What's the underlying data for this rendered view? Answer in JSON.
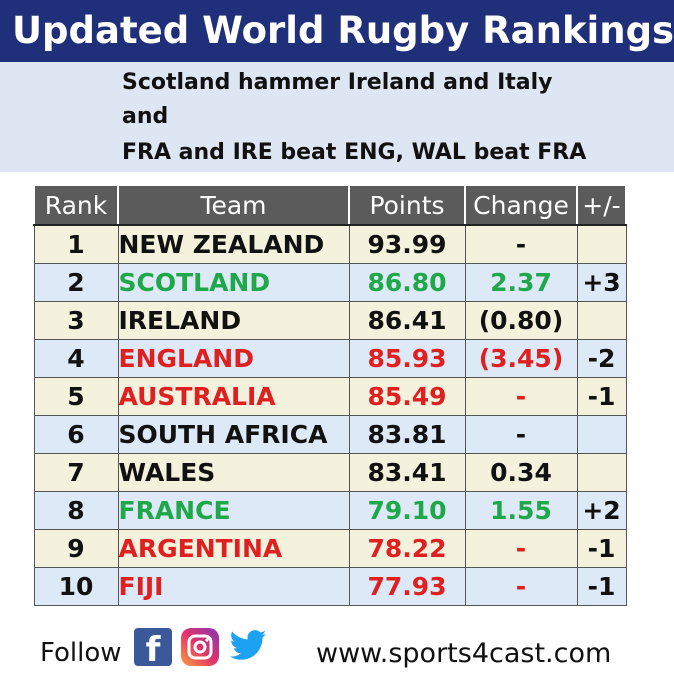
{
  "title": "Updated World Rugby Rankings if...",
  "subtitle": {
    "line1": "Scotland hammer Ireland and Italy",
    "line2": "and",
    "line3": "FRA and IRE beat ENG, WAL beat FRA"
  },
  "table": {
    "headers": [
      "Rank",
      "Team",
      "Points",
      "Change",
      "+/-"
    ],
    "rows": [
      {
        "rank": "1",
        "team": "NEW ZEALAND",
        "points": "93.99",
        "change": "-",
        "pm": "",
        "color": "black"
      },
      {
        "rank": "2",
        "team": "SCOTLAND",
        "points": "86.80",
        "change": "2.37",
        "pm": "+3",
        "color": "green"
      },
      {
        "rank": "3",
        "team": "IRELAND",
        "points": "86.41",
        "change": "(0.80)",
        "pm": "",
        "color": "black"
      },
      {
        "rank": "4",
        "team": "ENGLAND",
        "points": "85.93",
        "change": "(3.45)",
        "pm": "-2",
        "color": "red"
      },
      {
        "rank": "5",
        "team": "AUSTRALIA",
        "points": "85.49",
        "change": "-",
        "pm": "-1",
        "color": "red"
      },
      {
        "rank": "6",
        "team": "SOUTH AFRICA",
        "points": "83.81",
        "change": "-",
        "pm": "",
        "color": "black"
      },
      {
        "rank": "7",
        "team": "WALES",
        "points": "83.41",
        "change": "0.34",
        "pm": "",
        "color": "black"
      },
      {
        "rank": "8",
        "team": "FRANCE",
        "points": "79.10",
        "change": "1.55",
        "pm": "+2",
        "color": "green"
      },
      {
        "rank": "9",
        "team": "ARGENTINA",
        "points": "78.22",
        "change": "-",
        "pm": "-1",
        "color": "red"
      },
      {
        "rank": "10",
        "team": "FIJI",
        "points": "77.93",
        "change": "-",
        "pm": "-1",
        "color": "red"
      }
    ]
  },
  "footer": {
    "follow": "Follow",
    "icons": [
      "facebook-icon",
      "instagram-icon",
      "twitter-icon"
    ],
    "url": "www.sports4cast.com"
  },
  "colors": {
    "title_bg": "#1f2f7a",
    "subtitle_bg": "#dde6f2",
    "header_bg": "#5b5b5b",
    "row_odd": "#f4f2dc",
    "row_even": "#dde9f6",
    "green": "#1fa84a",
    "red": "#e02020"
  }
}
